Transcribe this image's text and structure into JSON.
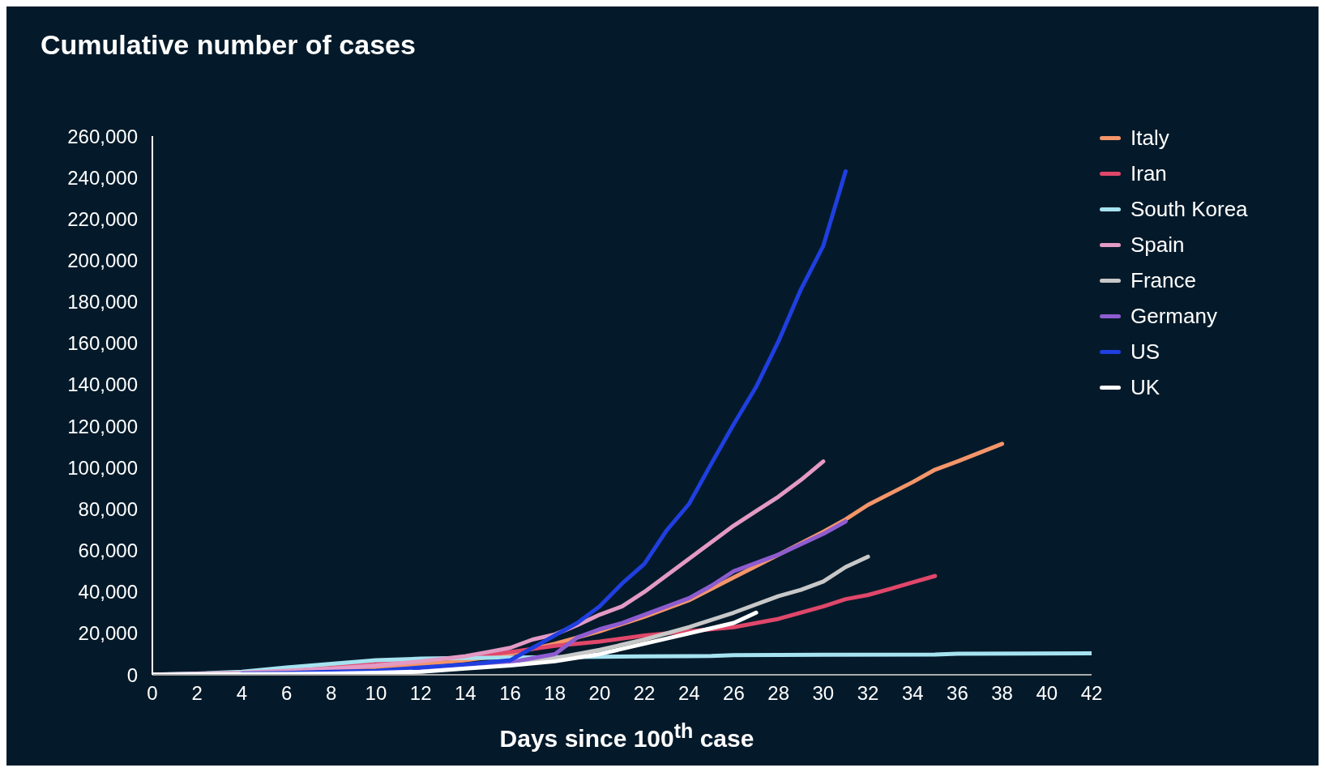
{
  "chart_data": {
    "type": "line",
    "title": "Cumulative number of cases",
    "xlabel": "Days since 100$^{th}$ case",
    "xlim": [
      0,
      42
    ],
    "xticks": [
      0,
      2,
      4,
      6,
      8,
      10,
      12,
      14,
      16,
      18,
      20,
      22,
      24,
      26,
      28,
      30,
      32,
      34,
      36,
      38,
      40,
      42
    ],
    "ylim": [
      0,
      260000
    ],
    "yticks": [
      {
        "value": 0,
        "label": "0"
      },
      {
        "value": 20000,
        "label": "20,000"
      },
      {
        "value": 40000,
        "label": "40,000"
      },
      {
        "value": 60000,
        "label": "60,000"
      },
      {
        "value": 80000,
        "label": "80,000"
      },
      {
        "value": 100000,
        "label": "100,000"
      },
      {
        "value": 120000,
        "label": "120,000"
      },
      {
        "value": 140000,
        "label": "140,000"
      },
      {
        "value": 160000,
        "label": "160,000"
      },
      {
        "value": 180000,
        "label": "180,000"
      },
      {
        "value": 200000,
        "label": "200,000"
      },
      {
        "value": 220000,
        "label": "220,000"
      },
      {
        "value": 240000,
        "label": "240,000"
      },
      {
        "value": 260000,
        "label": "260,000"
      }
    ],
    "grid": false,
    "legend": "top right",
    "marker": "none",
    "line_style": "solid",
    "series": [
      {
        "name": "Italy",
        "color": "#f4956a",
        "x": [
          8,
          10,
          12,
          14,
          16,
          18,
          20,
          22,
          24,
          26,
          28,
          30,
          31,
          32,
          34,
          35,
          36,
          38
        ],
        "values": [
          2000,
          3000,
          5000,
          7000,
          10000,
          15000,
          21000,
          28000,
          36000,
          47000,
          58000,
          69000,
          75000,
          82000,
          93000,
          99000,
          103000,
          111500
        ]
      },
      {
        "name": "Iran",
        "color": "#e0476a",
        "x": [
          6,
          8,
          10,
          12,
          14,
          16,
          18,
          20,
          22,
          24,
          26,
          28,
          30,
          31,
          32,
          33,
          34,
          35
        ],
        "values": [
          3000,
          4500,
          5800,
          7000,
          8500,
          11000,
          14000,
          16000,
          19000,
          21000,
          23000,
          27000,
          33000,
          36500,
          38500,
          41500,
          44600,
          47700
        ]
      },
      {
        "name": "South Korea",
        "color": "#a6e3f0",
        "x": [
          0,
          2,
          4,
          6,
          8,
          10,
          12,
          14,
          16,
          18,
          20,
          22,
          24,
          25,
          26,
          30,
          35,
          36,
          42
        ],
        "values": [
          100,
          600,
          1500,
          3500,
          5300,
          7000,
          7800,
          8100,
          8300,
          8500,
          8700,
          8900,
          9000,
          9100,
          9500,
          9700,
          9800,
          10200,
          10400
        ]
      },
      {
        "name": "Spain",
        "color": "#e39ac4",
        "x": [
          0,
          2,
          4,
          6,
          8,
          10,
          12,
          14,
          15,
          16,
          17,
          18,
          19,
          20,
          21,
          22,
          23,
          24,
          25,
          26,
          27,
          28,
          29,
          30
        ],
        "values": [
          100,
          500,
          1000,
          2000,
          3000,
          4500,
          6500,
          9000,
          11000,
          13000,
          17000,
          19500,
          24000,
          29000,
          33000,
          40000,
          48000,
          56000,
          64000,
          72000,
          79000,
          86000,
          94000,
          103000
        ]
      },
      {
        "name": "France",
        "color": "#c8c8c8",
        "x": [
          0,
          4,
          6,
          8,
          10,
          12,
          14,
          16,
          18,
          20,
          22,
          24,
          26,
          28,
          29,
          30,
          31,
          32
        ],
        "values": [
          100,
          400,
          600,
          1000,
          1800,
          2500,
          4500,
          5500,
          8000,
          12000,
          17000,
          23000,
          30000,
          38000,
          41000,
          45000,
          52000,
          57000
        ]
      },
      {
        "name": "Germany",
        "color": "#8e5cd0",
        "x": [
          0,
          4,
          6,
          8,
          10,
          12,
          14,
          16,
          17,
          18,
          19,
          20,
          21,
          22,
          24,
          25,
          26,
          28,
          30,
          31
        ],
        "values": [
          100,
          300,
          500,
          900,
          1500,
          2500,
          4000,
          6000,
          8000,
          10000,
          18000,
          22000,
          25000,
          29000,
          37000,
          43000,
          50000,
          58000,
          68000,
          74000
        ]
      },
      {
        "name": "US",
        "color": "#1f3fe0",
        "x": [
          4,
          6,
          8,
          10,
          12,
          14,
          15,
          16,
          17,
          18,
          19,
          20,
          21,
          22,
          23,
          24,
          25,
          26,
          27,
          28,
          29,
          30,
          31
        ],
        "values": [
          600,
          900,
          1500,
          2000,
          3500,
          5000,
          6000,
          7000,
          13000,
          19000,
          25000,
          33000,
          44000,
          53500,
          69700,
          82500,
          102000,
          121000,
          139000,
          161000,
          186000,
          207000,
          243000
        ]
      },
      {
        "name": "UK",
        "color": "#ffffff",
        "x": [
          0,
          4,
          6,
          8,
          10,
          12,
          14,
          16,
          18,
          20,
          22,
          24,
          26,
          27
        ],
        "values": [
          100,
          300,
          400,
          600,
          1000,
          1500,
          3000,
          4500,
          6500,
          10000,
          15000,
          20000,
          25000,
          30000
        ]
      }
    ]
  }
}
